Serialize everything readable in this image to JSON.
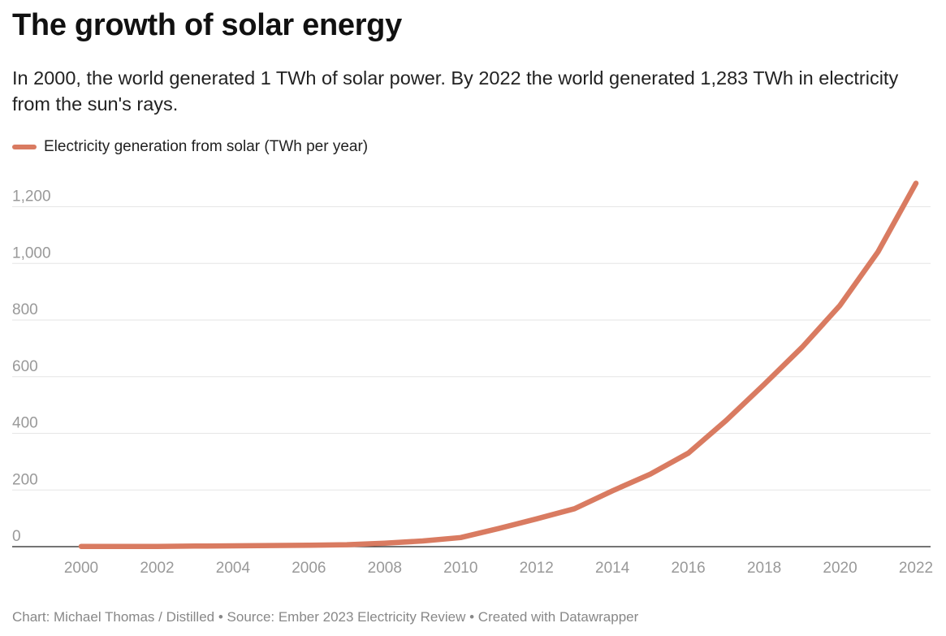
{
  "title": "The growth of solar energy",
  "subtitle": "In 2000, the world generated 1 TWh of solar power. By 2022 the world generated 1,283 TWh in electricity from the sun's rays.",
  "footer": {
    "credit": "Chart: Michael Thomas / Distilled",
    "separator": "•",
    "source": "Source: Ember 2023 Electricity Review",
    "tool": "Created with Datawrapper"
  },
  "colors": {
    "series": "#d97b61",
    "grid": "#e6e6e6",
    "baseline": "#222222",
    "tick_text": "#999999"
  },
  "chart_data": {
    "type": "line",
    "title": "The growth of solar energy",
    "subtitle": "In 2000, the world generated 1 TWh of solar power. By 2022 the world generated 1,283 TWh in electricity from the sun's rays.",
    "xlabel": "",
    "ylabel": "",
    "xlim": [
      2000,
      2022
    ],
    "ylim": [
      0,
      1300
    ],
    "x_ticks": [
      2000,
      2002,
      2004,
      2006,
      2008,
      2010,
      2012,
      2014,
      2016,
      2018,
      2020,
      2022
    ],
    "y_ticks": [
      0,
      200,
      400,
      600,
      800,
      1000,
      1200
    ],
    "y_tick_labels": [
      "0",
      "200",
      "400",
      "600",
      "800",
      "1,000",
      "1,200"
    ],
    "grid": "horizontal",
    "legend_position": "top-left",
    "series": [
      {
        "name": "Electricity generation from solar (TWh per year)",
        "x": [
          2000,
          2001,
          2002,
          2003,
          2004,
          2005,
          2006,
          2007,
          2008,
          2009,
          2010,
          2011,
          2012,
          2013,
          2014,
          2015,
          2016,
          2017,
          2018,
          2019,
          2020,
          2021,
          2022
        ],
        "values": [
          1,
          1,
          1,
          2,
          3,
          4,
          5,
          7,
          12,
          20,
          32,
          64,
          98,
          134,
          197,
          256,
          330,
          446,
          573,
          704,
          852,
          1041,
          1283
        ]
      }
    ]
  }
}
